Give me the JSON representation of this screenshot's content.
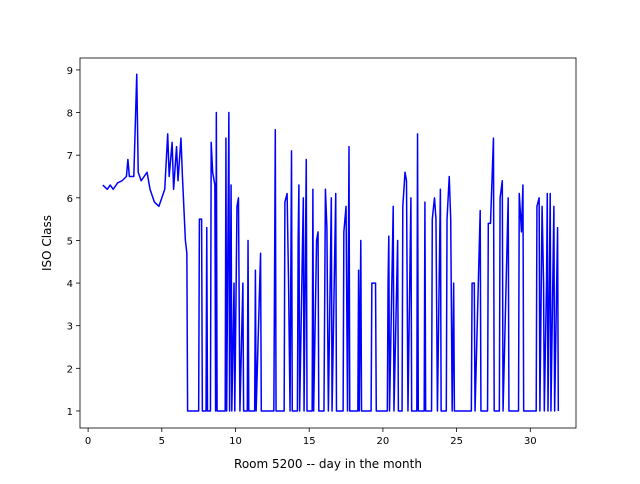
{
  "chart_data": {
    "type": "line",
    "xlabel": "Room 5200 -- day in the month",
    "ylabel": "ISO Class",
    "xlim": [
      -0.55,
      33.1
    ],
    "ylim": [
      0.6,
      9.28
    ],
    "xticks": [
      0,
      5,
      10,
      15,
      20,
      25,
      30
    ],
    "yticks": [
      1,
      2,
      3,
      4,
      5,
      6,
      7,
      8,
      9
    ],
    "x": [
      1.0,
      1.3,
      1.5,
      1.7,
      2.0,
      2.3,
      2.6,
      2.7,
      2.8,
      3.1,
      3.3,
      3.4,
      3.6,
      3.8,
      4.0,
      4.2,
      4.5,
      4.8,
      5.0,
      5.2,
      5.4,
      5.5,
      5.7,
      5.8,
      6.0,
      6.1,
      6.3,
      6.4,
      6.6,
      6.7,
      6.75,
      7.5,
      7.55,
      7.7,
      7.75,
      8.0,
      8.05,
      8.1,
      8.3,
      8.35,
      8.45,
      8.6,
      8.65,
      8.7,
      8.75,
      9.3,
      9.35,
      9.4,
      9.55,
      9.6,
      9.7,
      9.75,
      9.9,
      9.95,
      10.1,
      10.2,
      10.3,
      10.5,
      10.55,
      10.8,
      10.85,
      10.9,
      11.3,
      11.35,
      11.4,
      11.7,
      11.75,
      12.6,
      12.65,
      12.7,
      12.75,
      13.3,
      13.35,
      13.5,
      13.6,
      13.7,
      13.8,
      13.85,
      14.2,
      14.25,
      14.3,
      14.35,
      14.6,
      14.65,
      14.8,
      14.85,
      15.2,
      15.25,
      15.3,
      15.5,
      15.6,
      15.65,
      16.0,
      16.1,
      16.2,
      16.3,
      16.5,
      16.55,
      16.8,
      16.85,
      17.3,
      17.35,
      17.5,
      17.6,
      17.7,
      17.75,
      18.3,
      18.35,
      18.4,
      18.5,
      18.55,
      19.2,
      19.25,
      19.5,
      19.55,
      20.3,
      20.35,
      20.4,
      20.45,
      20.7,
      20.75,
      21.0,
      21.05,
      21.3,
      21.35,
      21.5,
      21.6,
      21.7,
      21.9,
      21.95,
      22.3,
      22.35,
      22.4,
      22.8,
      22.85,
      22.9,
      23.3,
      23.35,
      23.5,
      23.6,
      23.7,
      23.9,
      23.95,
      24.3,
      24.35,
      24.5,
      24.6,
      24.7,
      24.8,
      24.85,
      26.0,
      26.05,
      26.2,
      26.25,
      26.6,
      26.65,
      27.1,
      27.15,
      27.3,
      27.5,
      27.55,
      27.9,
      27.95,
      28.1,
      28.15,
      28.5,
      28.55,
      29.2,
      29.25,
      29.4,
      29.5,
      29.55,
      30.4,
      30.45,
      30.6,
      30.65,
      30.8,
      30.9,
      30.95,
      31.1,
      31.15,
      31.2,
      31.35,
      31.4,
      31.6,
      31.65,
      31.85,
      31.9
    ],
    "series": [
      {
        "color": "#0000ff",
        "values": [
          6.3,
          6.2,
          6.3,
          6.2,
          6.35,
          6.4,
          6.5,
          6.9,
          6.5,
          6.5,
          8.9,
          6.6,
          6.4,
          6.5,
          6.6,
          6.2,
          5.9,
          5.8,
          6.0,
          6.2,
          7.5,
          6.5,
          7.3,
          6.2,
          7.2,
          6.4,
          7.4,
          6.5,
          5.0,
          4.7,
          1,
          1,
          5.5,
          5.5,
          1,
          1,
          5.3,
          1,
          1,
          7.3,
          6.6,
          6.3,
          1,
          8.0,
          1,
          1,
          7.4,
          1,
          8.0,
          1,
          6.3,
          1,
          4.0,
          1,
          5.8,
          6.0,
          1,
          4.0,
          1,
          1,
          5.0,
          1,
          1,
          4.3,
          1,
          4.7,
          1,
          1,
          4.2,
          7.6,
          1,
          1,
          5.9,
          6.1,
          4.0,
          1,
          7.1,
          1,
          1,
          5.0,
          6.3,
          1,
          6.0,
          1,
          6.9,
          1,
          1,
          6.2,
          1,
          5.0,
          5.2,
          1,
          1,
          6.2,
          5.3,
          1,
          6.0,
          1,
          6.1,
          1,
          1,
          5.2,
          5.8,
          1,
          7.2,
          1,
          1,
          4.3,
          1,
          5.0,
          1,
          1,
          4.0,
          4.0,
          1,
          1,
          4.0,
          5.1,
          1,
          5.8,
          1,
          5.0,
          1,
          1,
          5.8,
          6.6,
          6.4,
          1,
          6.0,
          1,
          1,
          7.5,
          1,
          1,
          5.9,
          1,
          1,
          5.5,
          6.0,
          5.5,
          1,
          6.2,
          1,
          1,
          5.5,
          6.5,
          5.5,
          1,
          4.0,
          1,
          1,
          4.0,
          4.0,
          1,
          5.7,
          1,
          1,
          5.4,
          5.4,
          7.4,
          1,
          1,
          6.0,
          6.4,
          1,
          6.0,
          1,
          1,
          6.1,
          5.2,
          6.3,
          1,
          1,
          5.8,
          6.0,
          1,
          5.8,
          4.0,
          1,
          4.0,
          6.1,
          1,
          6.1,
          1,
          5.8,
          1,
          5.3,
          1
        ]
      }
    ]
  }
}
